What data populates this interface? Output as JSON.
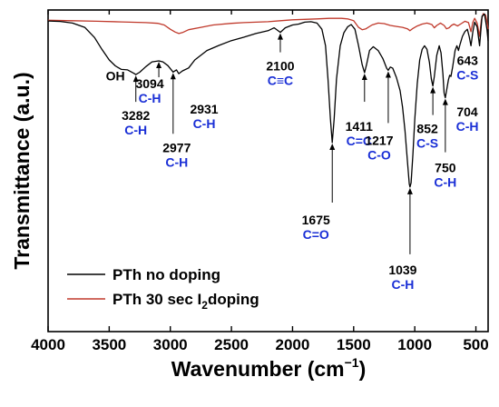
{
  "chart_data": {
    "type": "line",
    "xlabel": "Wavenumber (cm",
    "xlabel_sup": "−1",
    "xlabel_close": ")",
    "ylabel": "Transmittance (a.u.)",
    "xlim": [
      4000,
      400
    ],
    "x_reversed": true,
    "x_ticks": [
      "4000",
      "3500",
      "3000",
      "2500",
      "2000",
      "1500",
      "1000",
      "500"
    ],
    "y_ticks_shown": false,
    "grid": false,
    "legend_position": "bottom-left",
    "series": [
      {
        "name": "PTh no doping",
        "color": "#000000",
        "points": [
          [
            4000,
            96.5
          ],
          [
            3900,
            96.3
          ],
          [
            3800,
            95.6
          ],
          [
            3700,
            93.8
          ],
          [
            3620,
            89.5
          ],
          [
            3560,
            84.5
          ],
          [
            3500,
            80.0
          ],
          [
            3450,
            77.5
          ],
          [
            3400,
            76.0
          ],
          [
            3350,
            75.8
          ],
          [
            3300,
            74.4
          ],
          [
            3282,
            73.8
          ],
          [
            3250,
            74.8
          ],
          [
            3200,
            77.2
          ],
          [
            3150,
            79.2
          ],
          [
            3094,
            79.6
          ],
          [
            3060,
            79.2
          ],
          [
            3020,
            77.6
          ],
          [
            2977,
            74.9
          ],
          [
            2950,
            75.8
          ],
          [
            2931,
            74.2
          ],
          [
            2900,
            75.4
          ],
          [
            2850,
            76.6
          ],
          [
            2800,
            80.0
          ],
          [
            2700,
            84.0
          ],
          [
            2600,
            86.2
          ],
          [
            2500,
            88.2
          ],
          [
            2400,
            89.6
          ],
          [
            2300,
            91.2
          ],
          [
            2200,
            92.4
          ],
          [
            2150,
            93.6
          ],
          [
            2100,
            91.7
          ],
          [
            2060,
            93.6
          ],
          [
            2000,
            94.8
          ],
          [
            1950,
            95.2
          ],
          [
            1900,
            96.0
          ],
          [
            1850,
            96.2
          ],
          [
            1800,
            95.6
          ],
          [
            1760,
            93.0
          ],
          [
            1730,
            86.0
          ],
          [
            1710,
            72.0
          ],
          [
            1690,
            55.0
          ],
          [
            1675,
            45.0
          ],
          [
            1660,
            55.0
          ],
          [
            1640,
            72.0
          ],
          [
            1610,
            86.0
          ],
          [
            1580,
            91.5
          ],
          [
            1550,
            94.0
          ],
          [
            1520,
            95.0
          ],
          [
            1490,
            93.0
          ],
          [
            1460,
            86.0
          ],
          [
            1430,
            78.0
          ],
          [
            1411,
            74.6
          ],
          [
            1395,
            78.0
          ],
          [
            1370,
            84.0
          ],
          [
            1340,
            85.6
          ],
          [
            1300,
            84.0
          ],
          [
            1260,
            80.5
          ],
          [
            1230,
            76.5
          ],
          [
            1217,
            75.6
          ],
          [
            1200,
            77.0
          ],
          [
            1180,
            76.5
          ],
          [
            1150,
            72.5
          ],
          [
            1120,
            67.0
          ],
          [
            1100,
            60.0
          ],
          [
            1080,
            50.0
          ],
          [
            1060,
            37.0
          ],
          [
            1045,
            27.5
          ],
          [
            1039,
            26.2
          ],
          [
            1030,
            28.0
          ],
          [
            1015,
            40.0
          ],
          [
            1000,
            55.0
          ],
          [
            980,
            70.0
          ],
          [
            960,
            80.0
          ],
          [
            940,
            84.5
          ],
          [
            920,
            86.0
          ],
          [
            900,
            84.5
          ],
          [
            880,
            79.0
          ],
          [
            865,
            72.0
          ],
          [
            852,
            69.0
          ],
          [
            840,
            73.0
          ],
          [
            820,
            82.0
          ],
          [
            800,
            86.0
          ],
          [
            785,
            83.0
          ],
          [
            770,
            74.0
          ],
          [
            760,
            66.0
          ],
          [
            750,
            64.0
          ],
          [
            740,
            67.0
          ],
          [
            725,
            71.5
          ],
          [
            715,
            73.5
          ],
          [
            704,
            73.0
          ],
          [
            690,
            77.0
          ],
          [
            670,
            84.0
          ],
          [
            655,
            86.0
          ],
          [
            643,
            84.0
          ],
          [
            630,
            86.5
          ],
          [
            610,
            90.0
          ],
          [
            590,
            92.0
          ],
          [
            570,
            93.0
          ],
          [
            555,
            90.0
          ],
          [
            540,
            86.0
          ],
          [
            525,
            92.0
          ],
          [
            510,
            96.0
          ],
          [
            490,
            94.0
          ],
          [
            470,
            86.0
          ],
          [
            450,
            98.5
          ],
          [
            430,
            99.5
          ],
          [
            410,
            93.0
          ],
          [
            400,
            88.0
          ]
        ]
      },
      {
        "name": "PTh 30 sec I2doping",
        "name_prefix": "PTh 30 sec I",
        "name_sub": "2",
        "name_suffix": "doping",
        "color": "#c0392b",
        "points": [
          [
            4000,
            96.8
          ],
          [
            3800,
            96.6
          ],
          [
            3600,
            96.4
          ],
          [
            3400,
            96.1
          ],
          [
            3200,
            95.8
          ],
          [
            3100,
            95.5
          ],
          [
            3050,
            94.8
          ],
          [
            3000,
            93.0
          ],
          [
            2960,
            91.8
          ],
          [
            2930,
            91.2
          ],
          [
            2900,
            91.6
          ],
          [
            2850,
            92.8
          ],
          [
            2750,
            93.8
          ],
          [
            2650,
            94.8
          ],
          [
            2500,
            95.5
          ],
          [
            2400,
            95.8
          ],
          [
            2300,
            96.0
          ],
          [
            2200,
            96.2
          ],
          [
            2100,
            96.6
          ],
          [
            2000,
            97.0
          ],
          [
            1900,
            97.2
          ],
          [
            1800,
            97.4
          ],
          [
            1700,
            97.6
          ],
          [
            1600,
            97.6
          ],
          [
            1550,
            97.4
          ],
          [
            1500,
            96.6
          ],
          [
            1460,
            93.8
          ],
          [
            1430,
            92.8
          ],
          [
            1400,
            93.2
          ],
          [
            1350,
            94.8
          ],
          [
            1300,
            95.6
          ],
          [
            1250,
            95.4
          ],
          [
            1200,
            94.6
          ],
          [
            1150,
            94.2
          ],
          [
            1100,
            93.8
          ],
          [
            1060,
            93.2
          ],
          [
            1039,
            92.4
          ],
          [
            1020,
            93.2
          ],
          [
            980,
            94.4
          ],
          [
            940,
            95.2
          ],
          [
            900,
            95.6
          ],
          [
            860,
            95.0
          ],
          [
            840,
            93.6
          ],
          [
            820,
            94.6
          ],
          [
            790,
            95.6
          ],
          [
            760,
            94.6
          ],
          [
            740,
            93.2
          ],
          [
            720,
            93.6
          ],
          [
            700,
            94.6
          ],
          [
            680,
            95.2
          ],
          [
            650,
            94.4
          ],
          [
            620,
            95.4
          ],
          [
            590,
            96.4
          ],
          [
            560,
            95.8
          ],
          [
            540,
            92.0
          ],
          [
            525,
            96.0
          ],
          [
            510,
            97.6
          ],
          [
            490,
            95.6
          ],
          [
            470,
            90.0
          ],
          [
            455,
            97.0
          ],
          [
            440,
            99.6
          ],
          [
            420,
            99.0
          ],
          [
            405,
            95.0
          ],
          [
            400,
            93.0
          ]
        ]
      }
    ],
    "annotations": [
      {
        "label": "OH",
        "bond": "",
        "x": 3450,
        "y": 77.5
      },
      {
        "label": "3282",
        "bond": "C-H",
        "x": 3282,
        "y": 73.8
      },
      {
        "label": "3094",
        "bond": "C-H",
        "x": 3094,
        "y": 79.6
      },
      {
        "label": "2977",
        "bond": "C-H",
        "x": 2977,
        "y": 74.9
      },
      {
        "label": "2931",
        "bond": "C-H",
        "x": 2931,
        "y": 74.2
      },
      {
        "label": "2100",
        "bond": "C≡C",
        "x": 2100,
        "y": 91.7
      },
      {
        "label": "1675",
        "bond": "C=O",
        "x": 1675,
        "y": 45.0
      },
      {
        "label": "1411",
        "bond": "C=C",
        "x": 1411,
        "y": 74.6
      },
      {
        "label": "1217",
        "bond": "C-O",
        "x": 1217,
        "y": 75.6
      },
      {
        "label": "1039",
        "bond": "C-H",
        "x": 1039,
        "y": 26.2
      },
      {
        "label": "852",
        "bond": "C-S",
        "x": 852,
        "y": 69.0
      },
      {
        "label": "750",
        "bond": "C-H",
        "x": 750,
        "y": 64.0
      },
      {
        "label": "704",
        "bond": "C-H",
        "x": 704,
        "y": 73.0
      },
      {
        "label": "643",
        "bond": "C-S",
        "x": 643,
        "y": 84.0
      }
    ]
  }
}
